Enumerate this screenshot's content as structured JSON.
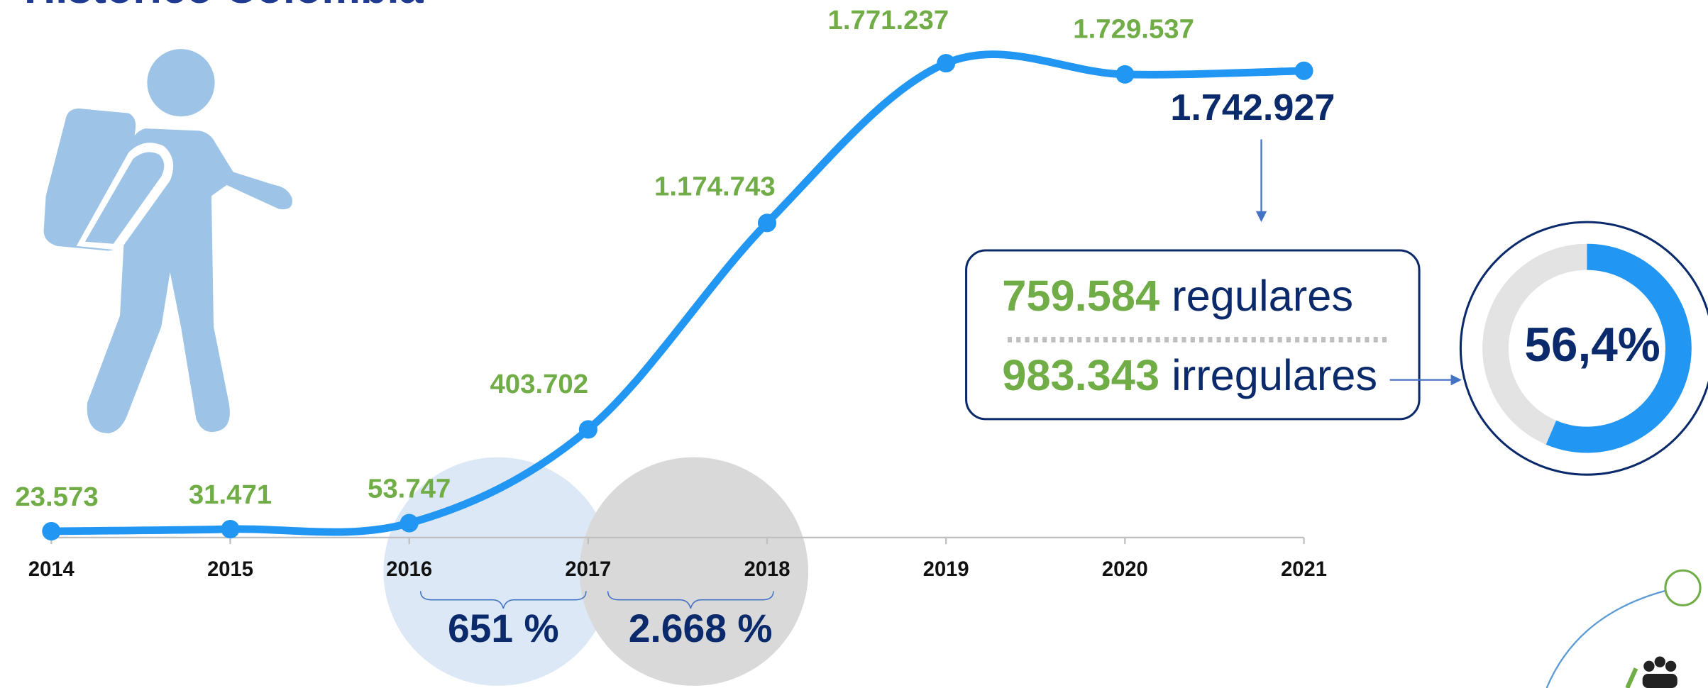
{
  "title": "Histórico Colombia",
  "chart_data": {
    "type": "line",
    "categories": [
      "2014",
      "2015",
      "2016",
      "2017",
      "2018",
      "2019",
      "2020",
      "2021"
    ],
    "series": [
      {
        "color": "#2196f3",
        "values": [
          23573,
          31471,
          53747,
          403702,
          1174743,
          1771237,
          1729537,
          1742927
        ],
        "value_labels": [
          "23.573",
          "31.471",
          "53.747",
          "403.702",
          "1.174.743",
          "1.771.237",
          "1.729.537",
          "1.742.927"
        ]
      }
    ],
    "ylim": [
      0,
      2000000
    ]
  },
  "growth": [
    {
      "value": 651,
      "label": "651 %"
    },
    {
      "value": 2668,
      "label": "2.668 %"
    }
  ],
  "breakdown": [
    {
      "value": 759584,
      "label": "759.584",
      "text": "regulares"
    },
    {
      "value": 983343,
      "label": "983.343",
      "text": "irregulares"
    }
  ],
  "share": {
    "value": 56.4,
    "label": "56,4%",
    "ylim": [
      0,
      100
    ]
  }
}
